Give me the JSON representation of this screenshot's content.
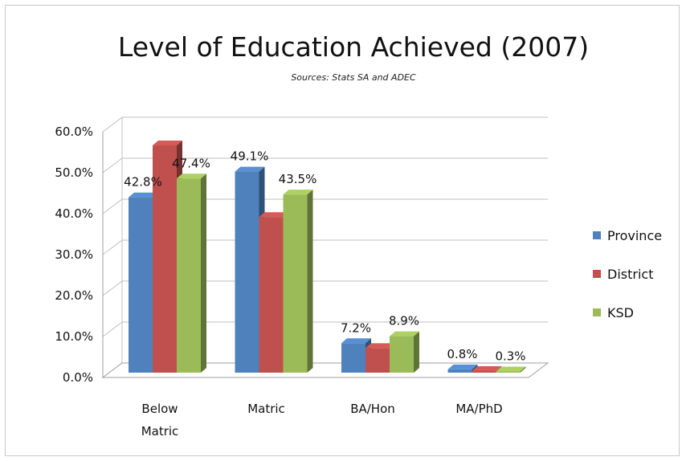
{
  "chart_data": {
    "type": "bar",
    "title": "Level of Education Achieved (2007)",
    "subtitle": "Sources: Stats SA and ADEC",
    "categories": [
      [
        "Below",
        "Matric"
      ],
      [
        "Matric"
      ],
      [
        "BA/Hon"
      ],
      [
        "MA/PhD"
      ]
    ],
    "series": [
      {
        "name": "Province",
        "values": [
          42.8,
          49.1,
          7.2,
          0.8
        ],
        "color": "#4f81bd"
      },
      {
        "name": "District",
        "values": [
          55.5,
          38.0,
          6.0,
          0.4
        ],
        "color": "#c0504d"
      },
      {
        "name": "KSD",
        "values": [
          47.4,
          43.5,
          8.9,
          0.3
        ],
        "color": "#9bbb59"
      }
    ],
    "data_labels": [
      [
        "42.8%",
        "49.1%",
        "7.2%",
        "0.8%"
      ],
      [
        "",
        "",
        "",
        ""
      ],
      [
        "47.4%",
        "43.5%",
        "8.9%",
        "0.3%"
      ]
    ],
    "y_ticks": [
      "0.0%",
      "10.0%",
      "20.0%",
      "30.0%",
      "40.0%",
      "50.0%",
      "60.0%"
    ],
    "ylim": [
      0,
      60
    ],
    "grid": true,
    "legend_position": "right",
    "xlabel": "",
    "ylabel": ""
  }
}
